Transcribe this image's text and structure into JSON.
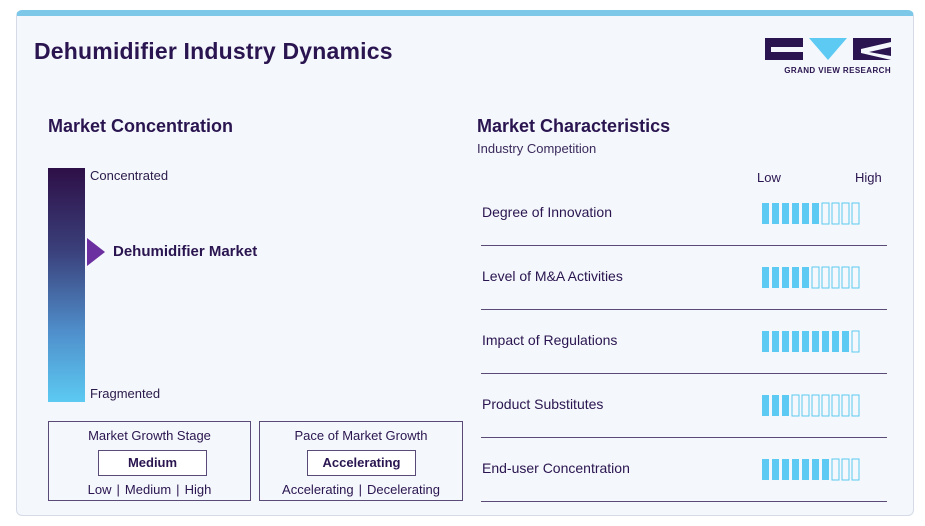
{
  "header": {
    "title": "Dehumidifier Industry Dynamics"
  },
  "logo": {
    "text": "GRAND VIEW RESEARCH"
  },
  "concentration": {
    "heading": "Market Concentration",
    "top_label": "Concentrated",
    "bottom_label": "Fragmented",
    "pointer_label": "Dehumidifier Market",
    "position": 0.36
  },
  "growth_stage": {
    "title": "Market Growth Stage",
    "value": "Medium",
    "options": [
      "Low",
      "Medium",
      "High"
    ]
  },
  "growth_pace": {
    "title": "Pace of Market Growth",
    "value": "Accelerating",
    "options": [
      "Accelerating",
      "Decelerating"
    ]
  },
  "characteristics": {
    "heading": "Market Characteristics",
    "subheading": "Industry Competition",
    "scale_low": "Low",
    "scale_high": "High"
  },
  "chart_data": {
    "type": "bar",
    "categories": [
      "Degree of Innovation",
      "Level of M&A Activities",
      "Impact of Regulations",
      "Product Substitutes",
      "End-user Concentration"
    ],
    "values": [
      6,
      5,
      9,
      3,
      7
    ],
    "max": 10,
    "colors": {
      "filled": "#5ccaf2",
      "empty_stroke": "#5ccaf2"
    }
  }
}
